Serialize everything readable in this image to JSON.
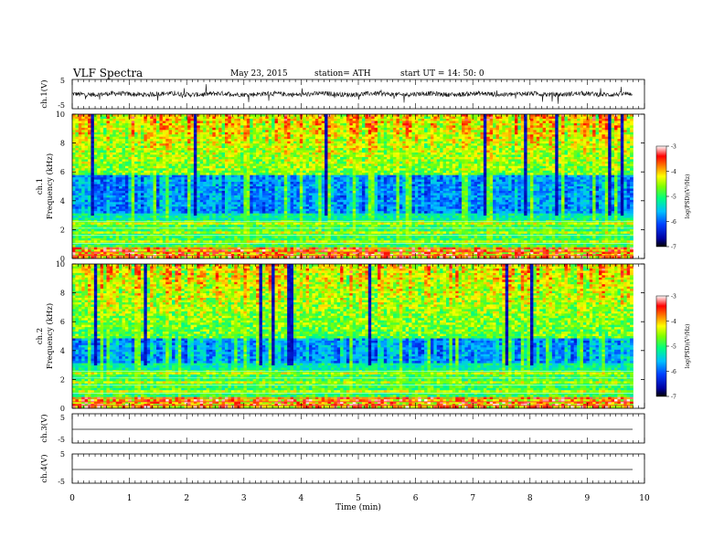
{
  "header": {
    "title": "VLF Spectra",
    "date": "May 23, 2015",
    "station": "station= ATH",
    "start": "start  UT  =    14: 50: 0"
  },
  "chart_data": [
    {
      "type": "line",
      "ylabel": "ch.1(V)",
      "ylim": [
        -5,
        5
      ],
      "yticks": [
        "5",
        "-5"
      ],
      "trace": "noisy waveform, amplitude approx ±1 V with spikes to ±3 V"
    },
    {
      "type": "heatmap",
      "ylabel_channel": "ch.1",
      "ylabel": "Frequency  (kHz)",
      "ylim": [
        0,
        10
      ],
      "yticks": [
        "0",
        "2",
        "4",
        "6",
        "8",
        "10"
      ],
      "xlim": [
        0,
        10
      ],
      "data_extent_min": [
        0,
        9.8
      ],
      "colorbar": {
        "label": "log(PSD)(V²/Hz)",
        "range": [
          -7,
          -3
        ],
        "ticks": [
          "-3",
          "-4",
          "-5",
          "-6",
          "-7"
        ]
      }
    },
    {
      "type": "heatmap",
      "ylabel_channel": "ch.2",
      "ylabel": "Frequency  (kHz)",
      "ylim": [
        0,
        10
      ],
      "yticks": [
        "0",
        "2",
        "4",
        "6",
        "8",
        "10"
      ],
      "xlim": [
        0,
        10
      ],
      "data_extent_min": [
        0,
        9.8
      ],
      "colorbar": {
        "label": "log(PSD)(V²/Hz)",
        "range": [
          -7,
          -3
        ],
        "ticks": [
          "-3",
          "-4",
          "-5",
          "-6",
          "-7"
        ]
      }
    },
    {
      "type": "line",
      "ylabel": "ch.3(V)",
      "ylim": [
        -5,
        5
      ],
      "yticks": [
        "5",
        "-5"
      ],
      "trace": "flat at approximately 0 V"
    },
    {
      "type": "line",
      "ylabel": "ch.4(V)",
      "ylim": [
        -5,
        5
      ],
      "yticks": [
        "5",
        "-5"
      ],
      "trace": "flat at approximately 0 V"
    }
  ],
  "xaxis": {
    "label": "Time  (min)",
    "xlim": [
      0,
      10
    ],
    "ticks": [
      "0",
      "1",
      "2",
      "3",
      "4",
      "5",
      "6",
      "7",
      "8",
      "9",
      "10"
    ]
  }
}
